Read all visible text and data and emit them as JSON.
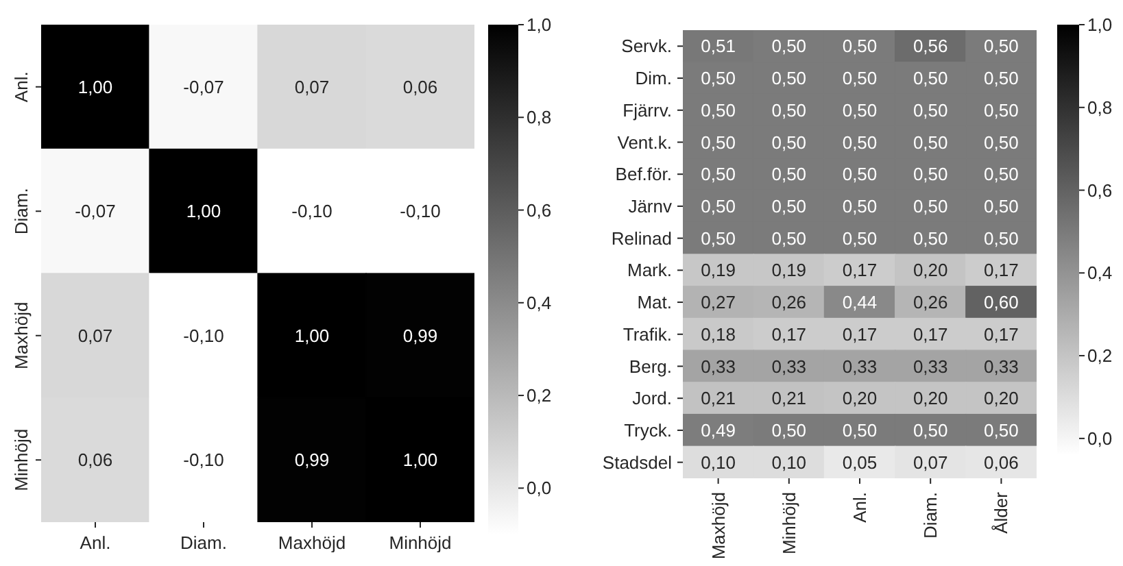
{
  "chart_data": [
    {
      "type": "heatmap",
      "categories": [
        "Anl.",
        "Diam.",
        "Maxhöjd",
        "Minhöjd"
      ],
      "y_categories": [
        "Anl.",
        "Diam.",
        "Maxhöjd",
        "Minhöjd"
      ],
      "cells": [
        [
          1.0,
          -0.07,
          0.07,
          0.06
        ],
        [
          -0.07,
          1.0,
          -0.1,
          -0.1
        ],
        [
          0.07,
          -0.1,
          1.0,
          0.99
        ],
        [
          0.06,
          -0.1,
          0.99,
          1.0
        ]
      ],
      "cell_labels": [
        [
          "1,00",
          "-0,07",
          "0,07",
          "0,06"
        ],
        [
          "-0,07",
          "1,00",
          "-0,10",
          "-0,10"
        ],
        [
          "0,07",
          "-0,10",
          "1,00",
          "0,99"
        ],
        [
          "0,06",
          "-0,10",
          "0,99",
          "1,00"
        ]
      ],
      "data_labels": true,
      "clim": [
        -0.1,
        1.0
      ],
      "cticks": [
        {
          "value": 0,
          "label": "0,0"
        },
        {
          "value": 0.2,
          "label": "0,2"
        },
        {
          "value": 0.4,
          "label": "0,4"
        },
        {
          "value": 0.6,
          "label": "0,6"
        },
        {
          "value": 0.8,
          "label": "0,8"
        },
        {
          "value": 1,
          "label": "1,0"
        }
      ]
    },
    {
      "type": "heatmap",
      "categories": [
        "Maxhöjd",
        "Minhöjd",
        "Anl.",
        "Diam.",
        "Ålder"
      ],
      "y_categories": [
        "Servk.",
        "Dim.",
        "Fjärrv.",
        "Vent.k.",
        "Bef.för.",
        "Järnv",
        "Relinad",
        "Mark.",
        "Mat.",
        "Trafik.",
        "Berg.",
        "Jord.",
        "Tryck.",
        "Stadsdel"
      ],
      "cells": [
        [
          0.51,
          0.5,
          0.5,
          0.56,
          0.5
        ],
        [
          0.5,
          0.5,
          0.5,
          0.5,
          0.5
        ],
        [
          0.5,
          0.5,
          0.5,
          0.5,
          0.5
        ],
        [
          0.5,
          0.5,
          0.5,
          0.5,
          0.5
        ],
        [
          0.5,
          0.5,
          0.5,
          0.5,
          0.5
        ],
        [
          0.5,
          0.5,
          0.5,
          0.5,
          0.5
        ],
        [
          0.5,
          0.5,
          0.5,
          0.5,
          0.5
        ],
        [
          0.19,
          0.19,
          0.17,
          0.2,
          0.17
        ],
        [
          0.27,
          0.26,
          0.44,
          0.26,
          0.6
        ],
        [
          0.18,
          0.17,
          0.17,
          0.17,
          0.17
        ],
        [
          0.33,
          0.33,
          0.33,
          0.33,
          0.33
        ],
        [
          0.21,
          0.21,
          0.2,
          0.2,
          0.2
        ],
        [
          0.49,
          0.5,
          0.5,
          0.5,
          0.5
        ],
        [
          0.1,
          0.1,
          0.05,
          0.07,
          0.06
        ]
      ],
      "cell_labels": [
        [
          "0,51",
          "0,50",
          "0,50",
          "0,56",
          "0,50"
        ],
        [
          "0,50",
          "0,50",
          "0,50",
          "0,50",
          "0,50"
        ],
        [
          "0,50",
          "0,50",
          "0,50",
          "0,50",
          "0,50"
        ],
        [
          "0,50",
          "0,50",
          "0,50",
          "0,50",
          "0,50"
        ],
        [
          "0,50",
          "0,50",
          "0,50",
          "0,50",
          "0,50"
        ],
        [
          "0,50",
          "0,50",
          "0,50",
          "0,50",
          "0,50"
        ],
        [
          "0,50",
          "0,50",
          "0,50",
          "0,50",
          "0,50"
        ],
        [
          "0,19",
          "0,19",
          "0,17",
          "0,20",
          "0,17"
        ],
        [
          "0,27",
          "0,26",
          "0,44",
          "0,26",
          "0,60"
        ],
        [
          "0,18",
          "0,17",
          "0,17",
          "0,17",
          "0,17"
        ],
        [
          "0,33",
          "0,33",
          "0,33",
          "0,33",
          "0,33"
        ],
        [
          "0,21",
          "0,21",
          "0,20",
          "0,20",
          "0,20"
        ],
        [
          "0,49",
          "0,50",
          "0,50",
          "0,50",
          "0,50"
        ],
        [
          "0,10",
          "0,10",
          "0,05",
          "0,07",
          "0,06"
        ]
      ],
      "data_labels": true,
      "clim": [
        -0.04,
        1.0
      ],
      "cticks": [
        {
          "value": 0,
          "label": "0,0"
        },
        {
          "value": 0.2,
          "label": "0,2"
        },
        {
          "value": 0.4,
          "label": "0,4"
        },
        {
          "value": 0.6,
          "label": "0,6"
        },
        {
          "value": 0.8,
          "label": "0,8"
        },
        {
          "value": 1,
          "label": "1,0"
        }
      ]
    }
  ]
}
